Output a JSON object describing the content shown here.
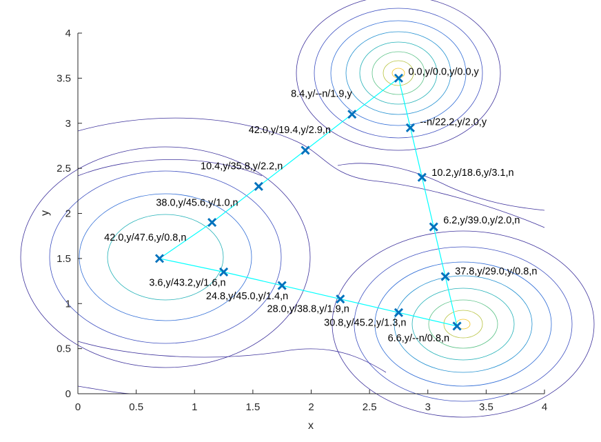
{
  "chart_data": {
    "type": "line",
    "title": "",
    "xlabel": "x",
    "ylabel": "y",
    "xlim": [
      0,
      4
    ],
    "ylim": [
      0,
      4
    ],
    "xticks": [
      0,
      0.5,
      1,
      1.5,
      2,
      2.5,
      3,
      3.5,
      4
    ],
    "yticks": [
      0,
      0.5,
      1,
      1.5,
      2,
      2.5,
      3,
      3.5,
      4
    ],
    "xtick_labels": [
      "0",
      "0.5",
      "1",
      "1.5",
      "2",
      "2.5",
      "3",
      "3.5",
      "4"
    ],
    "ytick_labels": [
      "0",
      "0.5",
      "1",
      "1.5",
      "2",
      "2.5",
      "3",
      "3.5",
      "4"
    ],
    "grid": false,
    "background": "contour",
    "colors": {
      "path_line": "#00ffff",
      "marker": "#0072bd",
      "axis": "#262626"
    },
    "series": [
      {
        "marker": "x",
        "points": [
          {
            "x": 2.75,
            "y": 3.5,
            "label": "0.0,y/0.0,y/0.0,y"
          },
          {
            "x": 2.85,
            "y": 2.95,
            "label": "--n/22.2,y/2.0,y"
          },
          {
            "x": 2.95,
            "y": 2.4,
            "label": "10.2,y/18.6,y/3.1,n"
          },
          {
            "x": 3.05,
            "y": 1.85,
            "label": "6.2,y/39.0,y/2.0,n"
          },
          {
            "x": 3.15,
            "y": 1.3,
            "label": "37.8,y/29.0,y/0.8,n"
          },
          {
            "x": 3.25,
            "y": 0.75,
            "label": "6.6,y/--n/0.8,n"
          },
          {
            "x": 2.75,
            "y": 0.9,
            "label": "30.8,y/45.2,y/1.3,n"
          },
          {
            "x": 2.25,
            "y": 1.05,
            "label": "28.0,y/38.8,y/1.9,n"
          },
          {
            "x": 1.75,
            "y": 1.2,
            "label": "24.8,y/45.0,y/1.4,n"
          },
          {
            "x": 1.25,
            "y": 1.35,
            "label": "3.6,y/43.2,y/1.6,n"
          },
          {
            "x": 0.7,
            "y": 1.5,
            "label": "42.0,y/47.6,y/0.8,n"
          },
          {
            "x": 1.15,
            "y": 1.9,
            "label": "38.0,y/45.6,y/1.0,n"
          },
          {
            "x": 1.55,
            "y": 2.3,
            "label": "10.4,y/35.8,y/2.2,n"
          },
          {
            "x": 1.95,
            "y": 2.7,
            "label": "42.0,y/19.4,y/2.9,n"
          },
          {
            "x": 2.35,
            "y": 3.1,
            "label": "8.4,y/--n/1.9,y"
          },
          {
            "x": 2.75,
            "y": 3.5,
            "label": ""
          }
        ]
      }
    ]
  }
}
